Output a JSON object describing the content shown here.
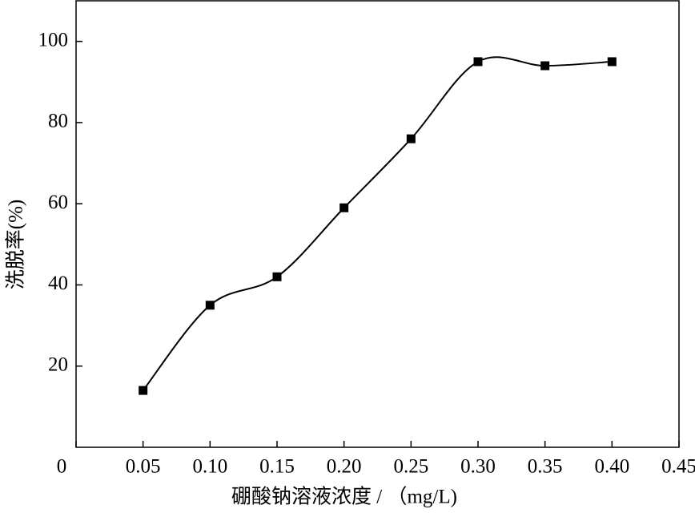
{
  "chart_data": {
    "type": "line",
    "x_label": "硼酸钠溶液浓度 / （mg/L)",
    "y_label": "洗脱率(%)",
    "x": [
      0.05,
      0.1,
      0.15,
      0.2,
      0.25,
      0.3,
      0.35,
      0.4
    ],
    "series": [
      {
        "color": "#000000",
        "values": [
          14,
          35,
          42,
          59,
          76,
          95,
          94,
          95
        ]
      }
    ],
    "xlim": [
      0,
      0.45
    ],
    "xticks": [
      0,
      0.05,
      {
        "value": 0.1,
        "label": "0.10"
      },
      0.15,
      {
        "value": 0.2,
        "label": "0.20"
      },
      0.25,
      {
        "value": 0.3,
        "label": "0.30"
      },
      0.35,
      {
        "value": 0.4,
        "label": "0.40"
      },
      0.45
    ],
    "ylim": [
      0,
      110
    ],
    "yticks": [
      20,
      40,
      60,
      80,
      100
    ],
    "smooth": true,
    "marker": "square"
  }
}
